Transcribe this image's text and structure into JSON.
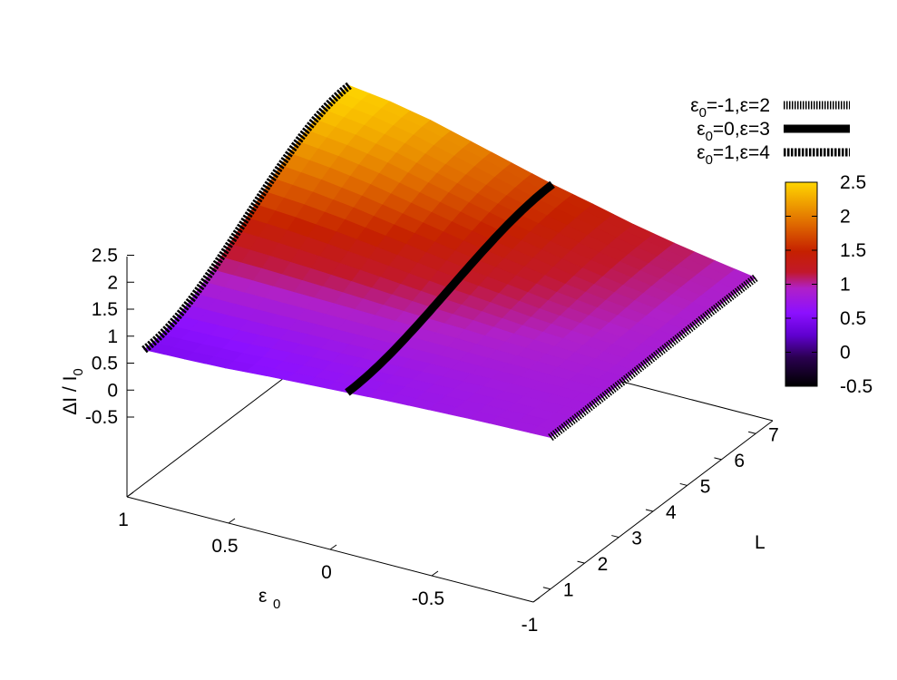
{
  "chart_data": {
    "type": "surface3d",
    "title": "",
    "axes": {
      "x": {
        "label": "L",
        "ticks": [
          "1",
          "2",
          "3",
          "4",
          "5",
          "6",
          "7"
        ],
        "range": [
          0.5,
          7.5
        ]
      },
      "y": {
        "label_main": "ε",
        "label_sub": "0",
        "ticks": [
          "1",
          "0.5",
          "0",
          "-0.5",
          "-1"
        ],
        "range": [
          -1,
          1
        ]
      },
      "z": {
        "label_main": "ΔI / I",
        "label_sub": "0",
        "ticks": [
          "2.5",
          "2",
          "1.5",
          "1",
          "0.5",
          "0",
          "-0.5"
        ],
        "range": [
          -0.5,
          2.5
        ]
      }
    },
    "surface": {
      "L": [
        1,
        7
      ],
      "eps0": [
        1,
        0.8,
        0.6,
        0.4,
        0.2,
        0,
        -0.2,
        -0.4,
        -0.6,
        -0.8,
        -1
      ],
      "z_at_L1": [
        0.5,
        0.52,
        0.55,
        0.6,
        0.64,
        0.68,
        0.72,
        0.75,
        0.78,
        0.8,
        0.82
      ],
      "z_at_L7": [
        2.5,
        2.4,
        2.25,
        2.05,
        1.85,
        1.65,
        1.48,
        1.3,
        1.15,
        1.02,
        0.9
      ],
      "colormap": [
        "#000000",
        "#2a0050",
        "#7a00ff",
        "#ba1fc0",
        "#c11d00",
        "#e06c00",
        "#ffd500"
      ]
    },
    "series": [
      {
        "name_main": "ε",
        "name_sub": "0",
        "name_rest": "=-1,ε=2",
        "eps0": -1,
        "style": "thin-dash"
      },
      {
        "name_main": "ε",
        "name_sub": "0",
        "name_rest": "=0,ε=3",
        "eps0": 0,
        "style": "solid"
      },
      {
        "name_main": "ε",
        "name_sub": "0",
        "name_rest": "=1,ε=4",
        "eps0": 1,
        "style": "thick-dash"
      }
    ],
    "colorbar": {
      "ticks": [
        "2.5",
        "2",
        "1.5",
        "1",
        "0.5",
        "0",
        "-0.5"
      ],
      "range": [
        -0.5,
        2.5
      ]
    },
    "legend_position": "top-right",
    "grid": false
  }
}
